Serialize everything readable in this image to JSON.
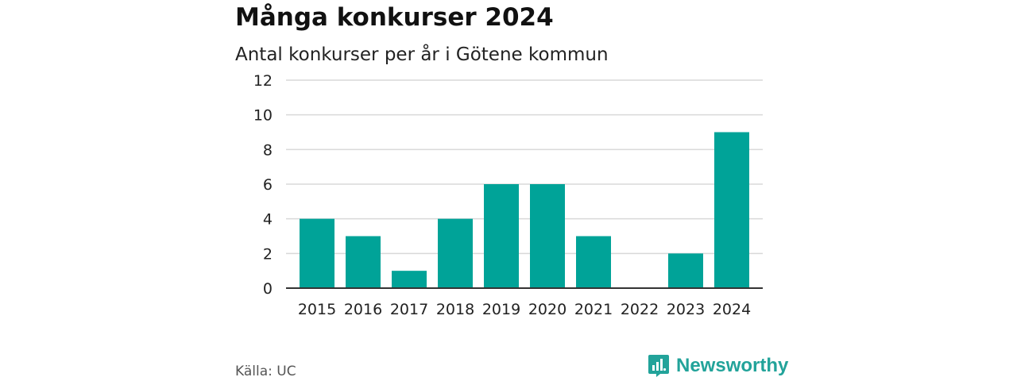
{
  "header": {
    "title": "Många konkurser 2024",
    "subtitle": "Antal konkurser per år i Götene kommun"
  },
  "footer": {
    "source": "Källa: UC",
    "brand": "Newsworthy",
    "brand_icon": "newsworthy-logo-icon"
  },
  "colors": {
    "bar": "#00A398",
    "grid": "#d9d9d9",
    "axis": "#333333",
    "brand": "#22a39a"
  },
  "chart_data": {
    "type": "bar",
    "title": "Många konkurser 2024",
    "subtitle": "Antal konkurser per år i Götene kommun",
    "categories": [
      "2015",
      "2016",
      "2017",
      "2018",
      "2019",
      "2020",
      "2021",
      "2022",
      "2023",
      "2024"
    ],
    "values": [
      4,
      3,
      1,
      4,
      6,
      6,
      3,
      0,
      2,
      9
    ],
    "ylim": [
      0,
      12
    ],
    "yticks": [
      0,
      2,
      4,
      6,
      8,
      10,
      12
    ],
    "grid": true,
    "legend": "none"
  }
}
